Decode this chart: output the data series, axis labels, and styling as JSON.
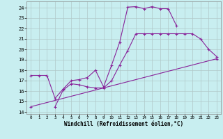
{
  "xlabel": "Windchill (Refroidissement éolien,°C)",
  "background_color": "#c8eef0",
  "grid_color": "#b0c8c8",
  "line_color": "#882299",
  "xlim": [
    -0.5,
    23.5
  ],
  "ylim": [
    13.8,
    24.6
  ],
  "xticks": [
    0,
    1,
    2,
    3,
    4,
    5,
    6,
    7,
    8,
    9,
    10,
    11,
    12,
    13,
    14,
    15,
    16,
    17,
    18,
    19,
    20,
    21,
    22,
    23
  ],
  "yticks": [
    14,
    15,
    16,
    17,
    18,
    19,
    20,
    21,
    22,
    23,
    24
  ],
  "line1_x": [
    0,
    1,
    2,
    3,
    4,
    5,
    6,
    7,
    8,
    9,
    10,
    11,
    12,
    13,
    14,
    15,
    16,
    17,
    18
  ],
  "line1_y": [
    17.5,
    17.5,
    17.5,
    15.3,
    16.2,
    17.0,
    17.1,
    17.3,
    18.0,
    16.4,
    18.5,
    20.7,
    24.05,
    24.1,
    23.9,
    24.1,
    23.9,
    23.9,
    22.3
  ],
  "line2_x": [
    3,
    4,
    5,
    6,
    7,
    8,
    9,
    10,
    11,
    12,
    13,
    14,
    15,
    16,
    17,
    18,
    19,
    20,
    21,
    22,
    23
  ],
  "line2_y": [
    14.5,
    16.1,
    16.7,
    16.6,
    16.4,
    16.3,
    16.3,
    17.0,
    18.5,
    19.9,
    21.5,
    21.5,
    21.5,
    21.5,
    21.5,
    21.5,
    21.5,
    21.5,
    21.0,
    20.0,
    19.3
  ],
  "line3_x": [
    0,
    23
  ],
  "line3_y": [
    14.5,
    19.1
  ]
}
